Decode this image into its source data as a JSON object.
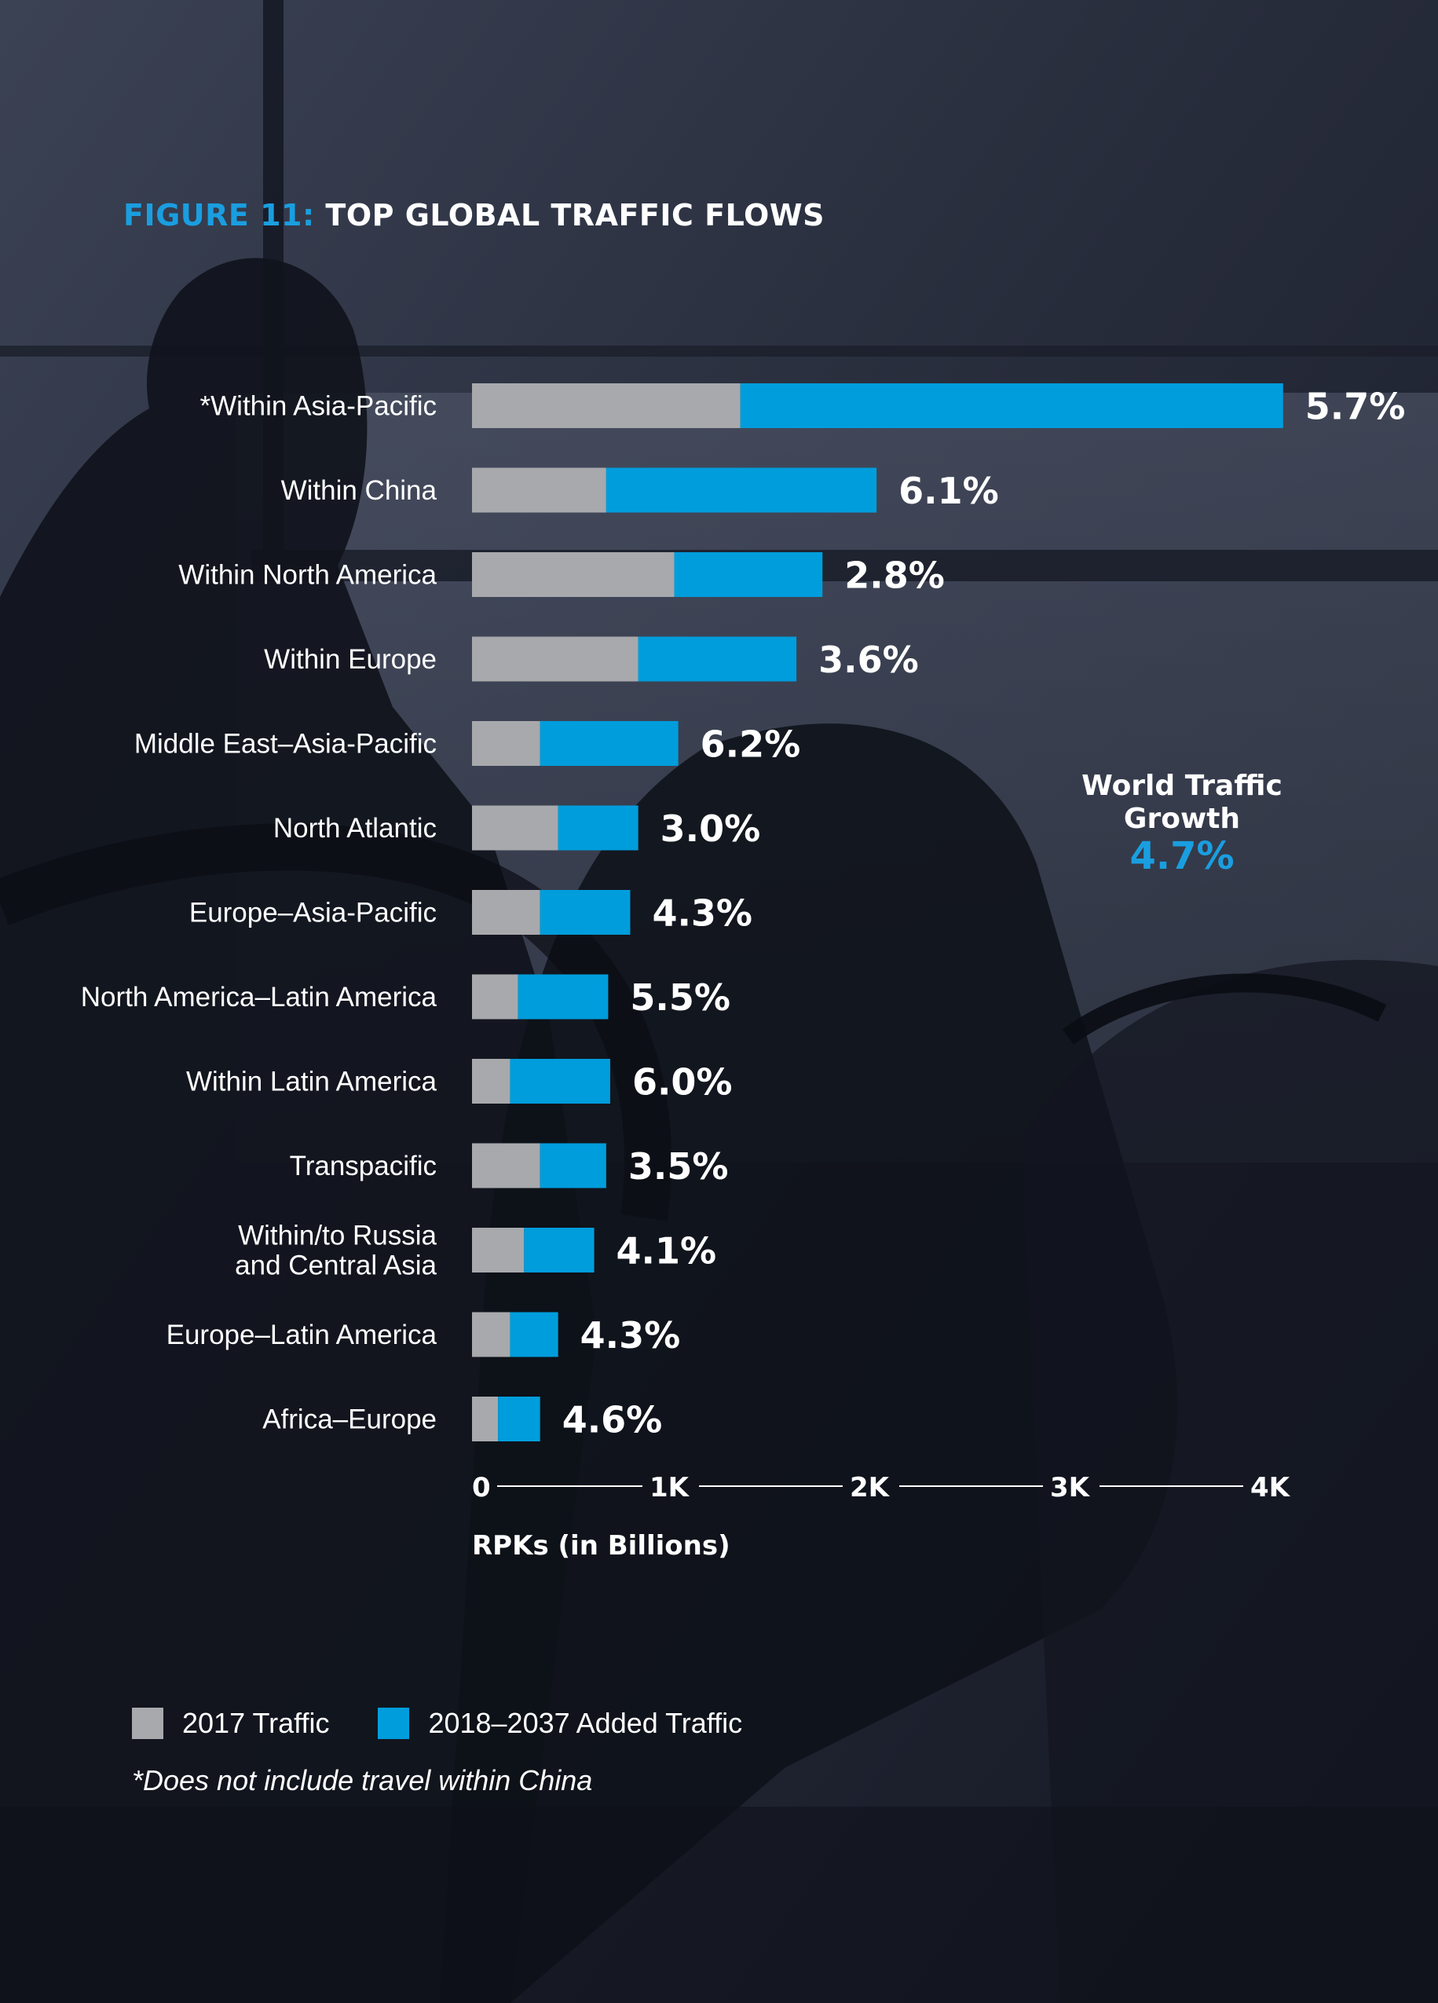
{
  "figure_label": "FIGURE 11:",
  "figure_title": "TOP GLOBAL TRAFFIC FLOWS",
  "world_growth": {
    "label_line1": "World Traffic",
    "label_line2": "Growth",
    "value": "4.7%"
  },
  "legend": {
    "item1": "2017 Traffic",
    "item2": "2018–2037 Added Traffic"
  },
  "footnote": "*Does not include travel within China",
  "colors": {
    "traffic_2017": "#a7a9ac",
    "added_traffic": "#009ddc",
    "accent": "#1a9ee0",
    "background": "#1a1e2c"
  },
  "chart_data": {
    "type": "bar",
    "orientation": "horizontal",
    "stacked": true,
    "categories": [
      [
        "*Within Asia-Pacific"
      ],
      [
        "Within China"
      ],
      [
        "Within North America"
      ],
      [
        "Within Europe"
      ],
      [
        "Middle East–Asia-Pacific"
      ],
      [
        "North Atlantic"
      ],
      [
        "Europe–Asia-Pacific"
      ],
      [
        "North America–Latin America"
      ],
      [
        "Within Latin America"
      ],
      [
        "Transpacific"
      ],
      [
        "Within/to Russia",
        "and Central Asia"
      ],
      [
        "Europe–Latin America"
      ],
      [
        "Africa–Europe"
      ]
    ],
    "series": [
      {
        "name": "2017 Traffic",
        "values": [
          1340,
          670,
          1010,
          830,
          340,
          430,
          340,
          230,
          190,
          340,
          260,
          190,
          130
        ]
      },
      {
        "name": "2018–2037 Added Traffic",
        "values": [
          2710,
          1350,
          740,
          790,
          690,
          400,
          450,
          450,
          500,
          330,
          350,
          240,
          210
        ]
      }
    ],
    "growth_labels": [
      "5.7%",
      "6.1%",
      "2.8%",
      "3.6%",
      "6.2%",
      "3.0%",
      "4.3%",
      "5.5%",
      "6.0%",
      "3.5%",
      "4.1%",
      "4.3%",
      "4.6%"
    ],
    "xlabel": "RPKs (in Billions)",
    "xticks": [
      "0",
      "1K",
      "2K",
      "3K",
      "4K"
    ],
    "xlim": [
      0,
      4000
    ],
    "grid": false
  }
}
